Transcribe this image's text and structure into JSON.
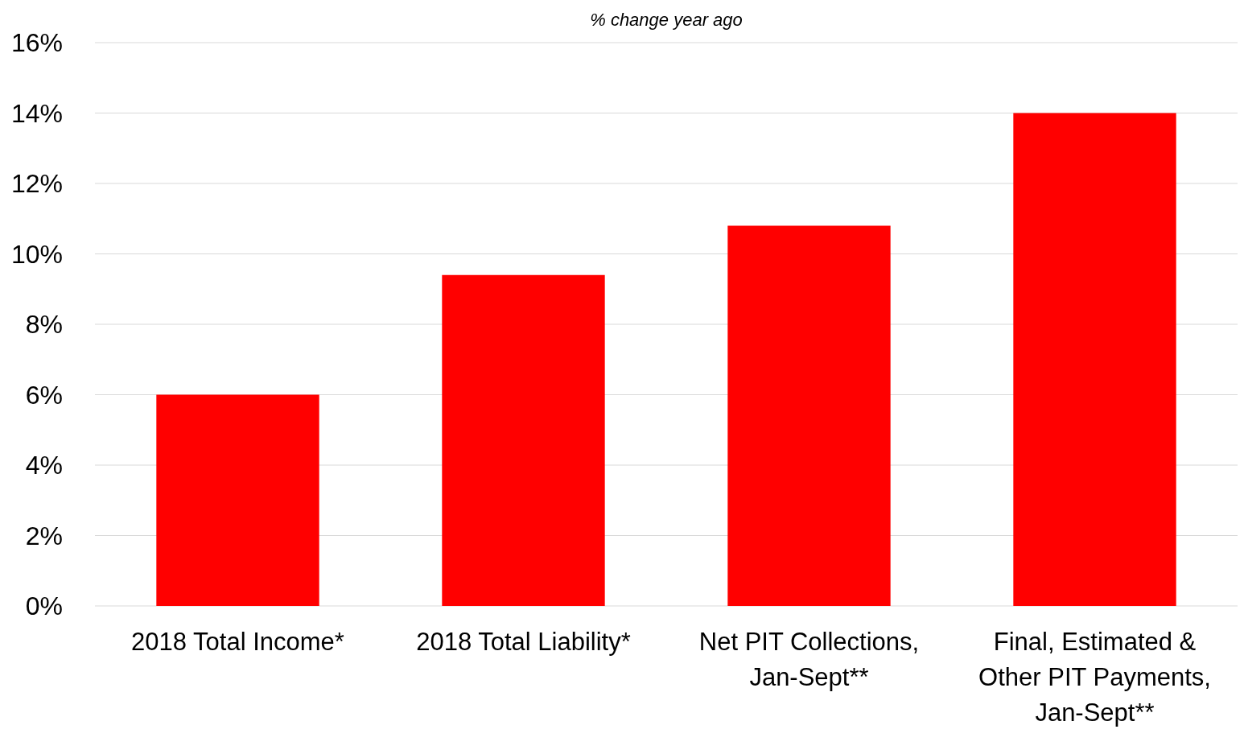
{
  "chart_data": {
    "type": "bar",
    "subtitle": "% change year ago",
    "categories": [
      "2018 Total Income*",
      "2018 Total Liability*",
      "Net PIT Collections, Jan-Sept**",
      "Final, Estimated & Other PIT Payments, Jan-Sept**"
    ],
    "values": [
      6.0,
      9.4,
      10.8,
      14.0
    ],
    "color": "#ff0000",
    "ylim": [
      0,
      16
    ],
    "yticks": [
      {
        "value": 0,
        "label": "0%"
      },
      {
        "value": 2,
        "label": "2%"
      },
      {
        "value": 4,
        "label": "4%"
      },
      {
        "value": 6,
        "label": "6%"
      },
      {
        "value": 8,
        "label": "8%"
      },
      {
        "value": 10,
        "label": "10%"
      },
      {
        "value": 12,
        "label": "12%"
      },
      {
        "value": 14,
        "label": "14%"
      },
      {
        "value": 16,
        "label": "16%"
      }
    ],
    "grid": "y"
  }
}
